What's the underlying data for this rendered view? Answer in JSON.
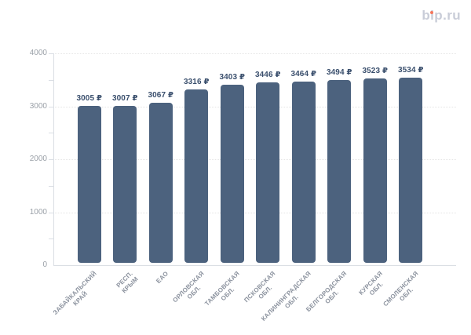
{
  "site": {
    "logo_text": "bip.ru",
    "logo_color": "#c9cdd8",
    "logo_dot_color": "#f4765c"
  },
  "chart_data": {
    "type": "bar",
    "title": "",
    "xlabel": "",
    "ylabel": "",
    "categories": [
      "ЗАБАЙКАЛЬСКИЙ\nКРАЙ",
      "РЕСП. КРЫМ",
      "ЕАО",
      "ОРЛОВСКАЯ\nОБЛ.",
      "ТАМБОВСКАЯ\nОБЛ.",
      "ПСКОВСКАЯ\nОБЛ.",
      "КАЛИНИНГРАДСКАЯ\nОБЛ.",
      "БЕЛГОРОДСКАЯ\nОБЛ.",
      "КУРСКАЯ ОБЛ.",
      "СМОЛЕНСКАЯ\nОБЛ."
    ],
    "values": [
      3005,
      3007,
      3067,
      3316,
      3403,
      3446,
      3464,
      3494,
      3523,
      3534
    ],
    "currency_suffix": "₽",
    "yticks": [
      0,
      1000,
      2000,
      3000,
      4000
    ],
    "minor_tick_step": 500,
    "ylim": [
      0,
      4000
    ],
    "grid": "horizontal dotted lines at major ticks",
    "legend": "none",
    "colors": {
      "bar": "#4c627e",
      "value_label": "#3a4f6d",
      "axis_label": "#9ba1a8",
      "category_label": "#8b929e",
      "gridline": "#e5e5e5",
      "axis_line": "#dadee4"
    }
  }
}
